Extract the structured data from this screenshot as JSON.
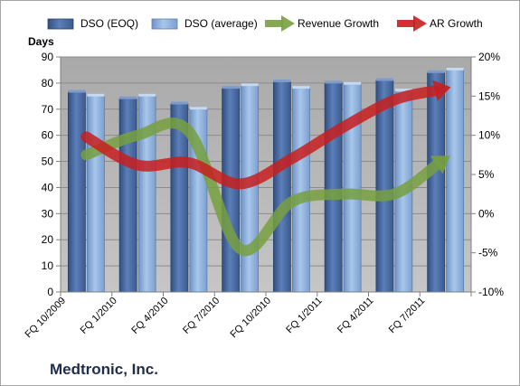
{
  "company": "Medtronic, Inc.",
  "chart_data": {
    "type": "bar",
    "categories": [
      "FQ 10/2009",
      "FQ 1/2010",
      "FQ 4/2010",
      "FQ 7/2010",
      "FQ 10/2010",
      "FQ 1/2011",
      "FQ 4/2011",
      "FQ 7/2011"
    ],
    "ylabel": "Days",
    "ylim": [
      0,
      90
    ],
    "yticks": [
      0,
      10,
      20,
      30,
      40,
      50,
      60,
      70,
      80,
      90
    ],
    "y2lim": [
      -10,
      20
    ],
    "y2ticks": [
      "-10%",
      "-5%",
      "0%",
      "5%",
      "10%",
      "15%",
      "20%"
    ],
    "legend_position": "top",
    "grid": true,
    "series": [
      {
        "name": "DSO (EOQ)",
        "kind": "bar",
        "axis": "left",
        "color": "#4f6fa6",
        "values": [
          76.5,
          74,
          72,
          78,
          80.5,
          80,
          81,
          84
        ]
      },
      {
        "name": "DSO (average)",
        "kind": "bar",
        "axis": "left",
        "color": "#8db0dc",
        "values": [
          75,
          75,
          70,
          79,
          78,
          79.5,
          77,
          85
        ]
      },
      {
        "name": "Revenue Growth",
        "kind": "line",
        "axis": "right",
        "color": "#77a03f",
        "values": [
          7.5,
          10,
          10.5,
          -4.5,
          1.5,
          2.5,
          2.5,
          7.0
        ]
      },
      {
        "name": "AR Growth",
        "kind": "line",
        "axis": "right",
        "color": "#c81e1e",
        "values": [
          9.8,
          6.2,
          6.5,
          3.8,
          7.0,
          11.0,
          14.5,
          16.0
        ]
      }
    ]
  }
}
